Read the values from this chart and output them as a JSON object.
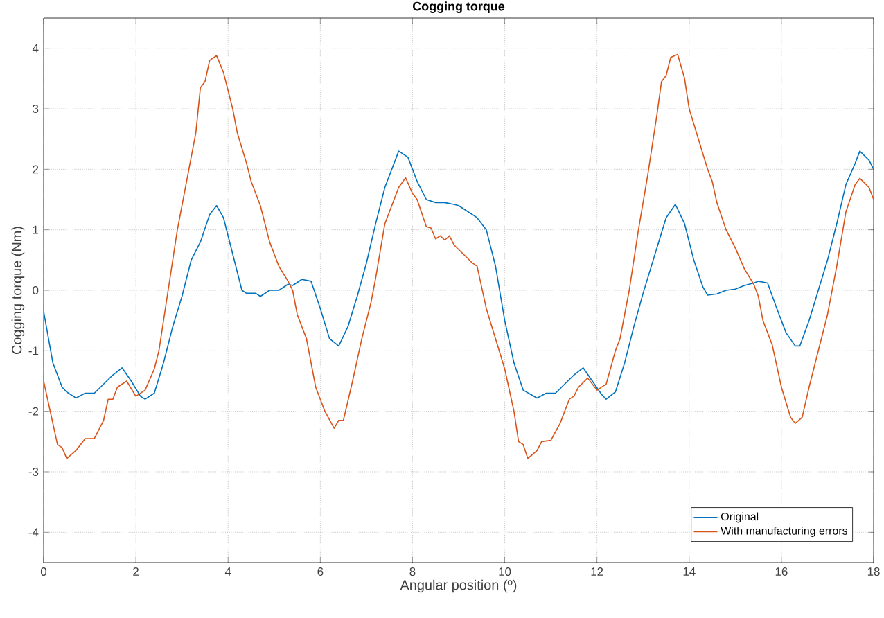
{
  "chart_data": {
    "type": "line",
    "title": "Cogging torque",
    "xlabel": "Angular position (º)",
    "ylabel": "Cogging torque (Nm)",
    "xlim": [
      0,
      18
    ],
    "ylim": [
      -4.5,
      4.5
    ],
    "xticks": [
      0,
      2,
      4,
      6,
      8,
      10,
      12,
      14,
      16,
      18
    ],
    "yticks": [
      -4,
      -3,
      -2,
      -1,
      0,
      1,
      2,
      3,
      4
    ],
    "grid": true,
    "legend": "bottom right",
    "line_style": "solid",
    "marker": "none",
    "series": [
      {
        "name": "Original",
        "color": "#0072bd",
        "x": [
          0,
          0.2,
          0.4,
          0.5,
          0.7,
          0.9,
          1.1,
          1.3,
          1.5,
          1.7,
          1.9,
          2.1,
          2.2,
          2.4,
          2.6,
          2.8,
          3.0,
          3.2,
          3.4,
          3.6,
          3.75,
          3.9,
          4.1,
          4.3,
          4.4,
          4.6,
          4.7,
          4.9,
          5.1,
          5.3,
          5.4,
          5.6,
          5.8,
          6.0,
          6.2,
          6.4,
          6.6,
          6.8,
          7.0,
          7.2,
          7.4,
          7.6,
          7.7,
          7.9,
          8.1,
          8.3,
          8.5,
          8.7,
          8.9,
          9.0,
          9.2,
          9.4,
          9.6,
          9.8,
          10.0,
          10.2,
          10.4,
          10.7,
          10.9,
          11.1,
          11.3,
          11.5,
          11.7,
          11.9,
          12.1,
          12.2,
          12.4,
          12.6,
          12.8,
          13.0,
          13.2,
          13.4,
          13.5,
          13.7,
          13.9,
          14.1,
          14.3,
          14.4,
          14.6,
          14.8,
          15.0,
          15.2,
          15.4,
          15.5,
          15.7,
          15.9,
          16.1,
          16.3,
          16.4,
          16.6,
          16.8,
          17.0,
          17.2,
          17.4,
          17.6,
          17.7,
          17.9,
          18.0
        ],
        "values": [
          -0.35,
          -1.2,
          -1.6,
          -1.68,
          -1.78,
          -1.7,
          -1.7,
          -1.55,
          -1.4,
          -1.28,
          -1.5,
          -1.75,
          -1.8,
          -1.7,
          -1.2,
          -0.6,
          -0.1,
          0.5,
          0.8,
          1.25,
          1.4,
          1.2,
          0.6,
          0.0,
          -0.05,
          -0.05,
          -0.1,
          0.0,
          0.0,
          0.1,
          0.08,
          0.18,
          0.15,
          -0.3,
          -0.8,
          -0.92,
          -0.6,
          -0.1,
          0.45,
          1.1,
          1.7,
          2.1,
          2.3,
          2.2,
          1.8,
          1.5,
          1.45,
          1.45,
          1.42,
          1.4,
          1.3,
          1.2,
          1.0,
          0.4,
          -0.5,
          -1.2,
          -1.65,
          -1.78,
          -1.7,
          -1.7,
          -1.55,
          -1.4,
          -1.28,
          -1.5,
          -1.72,
          -1.8,
          -1.68,
          -1.2,
          -0.6,
          -0.05,
          0.45,
          0.95,
          1.2,
          1.42,
          1.1,
          0.5,
          0.05,
          -0.08,
          -0.06,
          0.0,
          0.02,
          0.08,
          0.12,
          0.15,
          0.12,
          -0.3,
          -0.7,
          -0.92,
          -0.92,
          -0.5,
          0.0,
          0.5,
          1.1,
          1.75,
          2.1,
          2.3,
          2.15,
          2.0
        ]
      },
      {
        "name": "With manufacturing errors",
        "color": "#d95319",
        "x": [
          0,
          0.2,
          0.3,
          0.4,
          0.5,
          0.7,
          0.8,
          0.9,
          1.1,
          1.3,
          1.4,
          1.5,
          1.6,
          1.8,
          2.0,
          2.2,
          2.4,
          2.5,
          2.7,
          2.9,
          3.1,
          3.3,
          3.4,
          3.5,
          3.6,
          3.75,
          3.9,
          4.0,
          4.1,
          4.2,
          4.4,
          4.5,
          4.7,
          4.9,
          5.1,
          5.3,
          5.4,
          5.5,
          5.7,
          5.9,
          6.1,
          6.3,
          6.4,
          6.5,
          6.7,
          6.9,
          7.1,
          7.2,
          7.4,
          7.5,
          7.7,
          7.85,
          8.0,
          8.1,
          8.3,
          8.4,
          8.5,
          8.6,
          8.7,
          8.8,
          8.9,
          9.1,
          9.3,
          9.4,
          9.5,
          9.6,
          9.8,
          10.0,
          10.2,
          10.3,
          10.4,
          10.5,
          10.7,
          10.8,
          11.0,
          11.2,
          11.4,
          11.5,
          11.6,
          11.8,
          12.0,
          12.2,
          12.4,
          12.5,
          12.7,
          12.9,
          13.1,
          13.3,
          13.4,
          13.5,
          13.6,
          13.75,
          13.9,
          14.0,
          14.2,
          14.4,
          14.5,
          14.6,
          14.8,
          15.0,
          15.2,
          15.4,
          15.5,
          15.6,
          15.8,
          16.0,
          16.2,
          16.3,
          16.45,
          16.6,
          16.8,
          17.0,
          17.2,
          17.4,
          17.6,
          17.7,
          17.9,
          18.0
        ],
        "values": [
          -1.5,
          -2.2,
          -2.55,
          -2.6,
          -2.78,
          -2.65,
          -2.55,
          -2.45,
          -2.45,
          -2.15,
          -1.8,
          -1.8,
          -1.6,
          -1.5,
          -1.75,
          -1.65,
          -1.3,
          -1.0,
          0.0,
          1.0,
          1.8,
          2.6,
          3.35,
          3.45,
          3.8,
          3.88,
          3.6,
          3.3,
          3.0,
          2.6,
          2.1,
          1.8,
          1.4,
          0.8,
          0.4,
          0.15,
          0.0,
          -0.4,
          -0.8,
          -1.6,
          -2.0,
          -2.28,
          -2.15,
          -2.15,
          -1.5,
          -0.8,
          -0.2,
          0.2,
          1.1,
          1.3,
          1.7,
          1.86,
          1.6,
          1.5,
          1.05,
          1.03,
          0.85,
          0.9,
          0.83,
          0.9,
          0.75,
          0.6,
          0.45,
          0.4,
          0.05,
          -0.3,
          -0.8,
          -1.3,
          -2.0,
          -2.5,
          -2.55,
          -2.78,
          -2.65,
          -2.5,
          -2.48,
          -2.2,
          -1.8,
          -1.75,
          -1.6,
          -1.45,
          -1.65,
          -1.55,
          -1.0,
          -0.8,
          0.0,
          1.0,
          1.9,
          2.9,
          3.45,
          3.55,
          3.85,
          3.9,
          3.5,
          3.0,
          2.5,
          2.0,
          1.8,
          1.45,
          1.0,
          0.7,
          0.35,
          0.1,
          -0.1,
          -0.5,
          -0.9,
          -1.6,
          -2.1,
          -2.2,
          -2.1,
          -1.6,
          -1.0,
          -0.4,
          0.4,
          1.3,
          1.75,
          1.85,
          1.7,
          1.5
        ]
      }
    ]
  }
}
